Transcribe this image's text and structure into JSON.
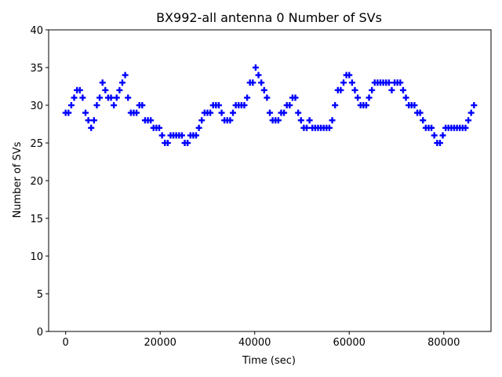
{
  "chart_data": {
    "type": "scatter",
    "title": "BX992-all antenna 0 Number of SVs",
    "xlabel": "Time (sec)",
    "ylabel": "Number of SVs",
    "xlim": [
      -3600,
      90000
    ],
    "ylim": [
      0,
      40
    ],
    "xticks": [
      0,
      20000,
      40000,
      60000,
      80000
    ],
    "yticks": [
      0,
      5,
      10,
      15,
      20,
      25,
      30,
      35,
      40
    ],
    "grid": false,
    "marker": "plus",
    "series": [
      {
        "color": "#0000ff",
        "x": [
          0,
          600,
          1200,
          1800,
          2400,
          3000,
          3600,
          4200,
          4800,
          5400,
          6000,
          6600,
          7200,
          7800,
          8400,
          9000,
          9600,
          10200,
          10800,
          11400,
          12000,
          12600,
          13200,
          13800,
          14400,
          15000,
          15600,
          16200,
          16800,
          17400,
          18000,
          18600,
          19200,
          19800,
          20400,
          21000,
          21600,
          22200,
          22800,
          23400,
          24000,
          24600,
          25200,
          25800,
          26400,
          27000,
          27600,
          28200,
          28800,
          29400,
          30000,
          30600,
          31200,
          31800,
          32400,
          33000,
          33600,
          34200,
          34800,
          35400,
          36000,
          36600,
          37200,
          37800,
          38400,
          39000,
          39600,
          40200,
          40800,
          41400,
          42000,
          42600,
          43200,
          43800,
          44400,
          45000,
          45600,
          46200,
          46800,
          47400,
          48000,
          48600,
          49200,
          49800,
          50400,
          51000,
          51600,
          52200,
          52800,
          53400,
          54000,
          54600,
          55200,
          55800,
          56400,
          57000,
          57600,
          58200,
          58800,
          59400,
          60000,
          60600,
          61200,
          61800,
          62400,
          63000,
          63600,
          64200,
          64800,
          65400,
          66000,
          66600,
          67200,
          67800,
          68400,
          69000,
          69600,
          70200,
          70800,
          71400,
          72000,
          72600,
          73200,
          73800,
          74400,
          75000,
          75600,
          76200,
          76800,
          77400,
          78000,
          78600,
          79200,
          79800,
          80400,
          81000,
          81600,
          82200,
          82800,
          83400,
          84000,
          84600,
          85200,
          85800,
          86400
        ],
        "y": [
          29,
          29,
          30,
          31,
          32,
          32,
          31,
          29,
          28,
          27,
          28,
          30,
          31,
          33,
          32,
          31,
          31,
          30,
          31,
          32,
          33,
          34,
          31,
          29,
          29,
          29,
          30,
          30,
          28,
          28,
          28,
          27,
          27,
          27,
          26,
          25,
          25,
          26,
          26,
          26,
          26,
          26,
          25,
          25,
          26,
          26,
          26,
          27,
          28,
          29,
          29,
          29,
          30,
          30,
          30,
          29,
          28,
          28,
          28,
          29,
          30,
          30,
          30,
          30,
          31,
          33,
          33,
          35,
          34,
          33,
          32,
          31,
          29,
          28,
          28,
          28,
          29,
          29,
          30,
          30,
          31,
          31,
          29,
          28,
          27,
          27,
          28,
          27,
          27,
          27,
          27,
          27,
          27,
          27,
          28,
          30,
          32,
          32,
          33,
          34,
          34,
          33,
          32,
          31,
          30,
          30,
          30,
          31,
          32,
          33,
          33,
          33,
          33,
          33,
          33,
          32,
          33,
          33,
          33,
          32,
          31,
          30,
          30,
          30,
          29,
          29,
          28,
          27,
          27,
          27,
          26,
          25,
          25,
          26,
          27,
          27,
          27,
          27,
          27,
          27,
          27,
          27,
          28,
          29,
          30
        ]
      }
    ]
  }
}
